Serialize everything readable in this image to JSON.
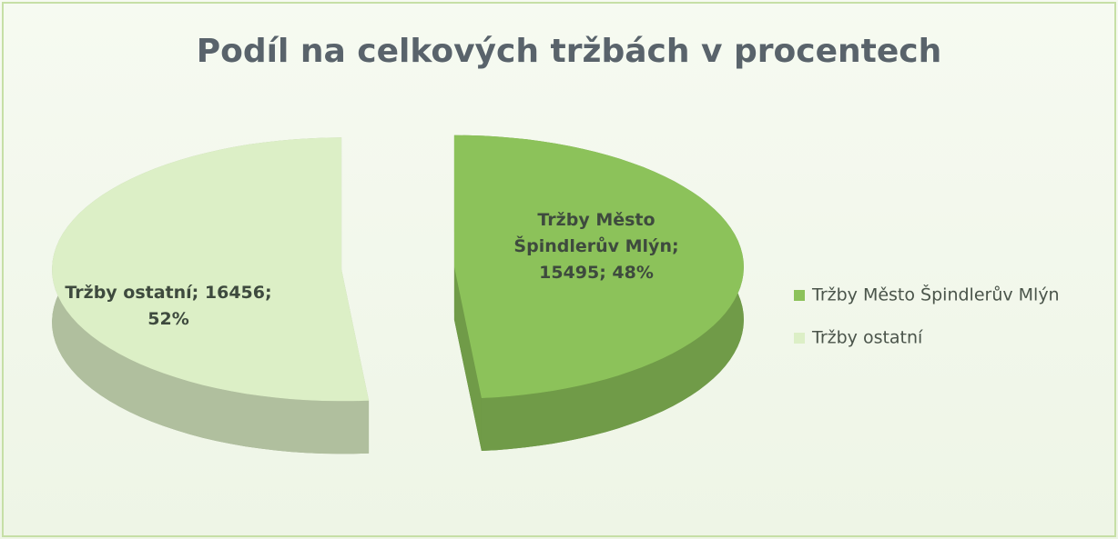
{
  "chart_data": {
    "type": "pie3d",
    "title": "Podíl na celkových tržbách v procentech",
    "categories": [
      "Tržby Město Špindlerův Mlýn",
      "Tržby ostatní"
    ],
    "values": [
      15495,
      16456
    ],
    "value_labels": [
      "Tržby Město Špindlerův Mlýn; 15495; 48%",
      "Tržby ostatní; 16456; 52%"
    ],
    "colors": [
      "#8cc25a",
      "#dcefc6"
    ],
    "legend": "right"
  }
}
